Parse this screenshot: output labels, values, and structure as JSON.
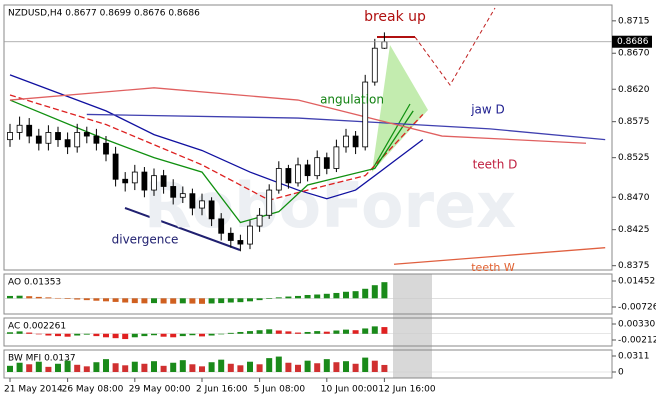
{
  "chart_data": [
    {
      "type": "candlestick",
      "title": "NZDUSD,H4 0.8677 0.8699 0.8676 0.8686",
      "watermark": "RoboForex",
      "categories": [
        "21 May 2014",
        null,
        null,
        null,
        null,
        null,
        "26 May 08:00",
        null,
        null,
        null,
        null,
        null,
        null,
        "29 May 00:00",
        null,
        null,
        null,
        null,
        null,
        null,
        "2 Jun 16:00",
        null,
        null,
        null,
        null,
        null,
        "5 Jun 08:00",
        null,
        null,
        null,
        null,
        null,
        null,
        "10 Jun 00:00",
        null,
        null,
        null,
        null,
        null,
        "12 Jun 16:00"
      ],
      "open": [
        0.855,
        0.856,
        0.857,
        0.8555,
        0.8545,
        0.856,
        0.855,
        0.854,
        0.856,
        0.8555,
        0.8545,
        0.853,
        0.8495,
        0.849,
        0.8505,
        0.848,
        0.85,
        0.8485,
        0.847,
        0.8475,
        0.8455,
        0.8465,
        0.844,
        0.842,
        0.841,
        0.8405,
        0.843,
        0.8445,
        0.848,
        0.851,
        0.849,
        0.8515,
        0.85,
        0.8525,
        0.851,
        0.854,
        0.8555,
        0.854,
        0.863,
        0.8677
      ],
      "high": [
        0.8572,
        0.8582,
        0.858,
        0.8565,
        0.857,
        0.8568,
        0.856,
        0.8572,
        0.8568,
        0.8565,
        0.8555,
        0.854,
        0.8505,
        0.8515,
        0.8512,
        0.851,
        0.8508,
        0.8495,
        0.8485,
        0.8482,
        0.8475,
        0.847,
        0.8448,
        0.8428,
        0.8418,
        0.8438,
        0.8455,
        0.8488,
        0.852,
        0.8515,
        0.8525,
        0.8522,
        0.8535,
        0.8532,
        0.855,
        0.8565,
        0.8562,
        0.864,
        0.869,
        0.8699
      ],
      "low": [
        0.854,
        0.855,
        0.8545,
        0.8535,
        0.8535,
        0.854,
        0.853,
        0.8532,
        0.8545,
        0.8535,
        0.852,
        0.8485,
        0.8478,
        0.848,
        0.847,
        0.8472,
        0.8475,
        0.846,
        0.8462,
        0.8445,
        0.8445,
        0.843,
        0.841,
        0.84,
        0.8395,
        0.8398,
        0.8422,
        0.844,
        0.8475,
        0.8482,
        0.8485,
        0.8492,
        0.8495,
        0.8502,
        0.8505,
        0.8532,
        0.853,
        0.8535,
        0.8625,
        0.8676
      ],
      "close": [
        0.856,
        0.857,
        0.8555,
        0.8545,
        0.856,
        0.855,
        0.854,
        0.856,
        0.8555,
        0.8545,
        0.853,
        0.8495,
        0.849,
        0.8505,
        0.848,
        0.85,
        0.8485,
        0.847,
        0.8475,
        0.8455,
        0.8465,
        0.844,
        0.842,
        0.841,
        0.8405,
        0.843,
        0.8445,
        0.848,
        0.851,
        0.849,
        0.8515,
        0.85,
        0.8525,
        0.851,
        0.854,
        0.8555,
        0.854,
        0.863,
        0.8677,
        0.8686
      ],
      "lines": [
        {
          "color": "#1010a0",
          "style": "solid",
          "x": [
            0,
            5,
            10,
            15,
            20,
            25,
            30,
            33,
            36,
            40,
            43
          ],
          "values": [
            0.864,
            0.8615,
            0.859,
            0.8557,
            0.8535,
            0.8505,
            0.848,
            0.8468,
            0.848,
            0.852,
            0.855
          ]
        },
        {
          "color": "#dd2020",
          "style": "dashed",
          "x": [
            0,
            10,
            20,
            27,
            31,
            37,
            43
          ],
          "values": [
            0.8612,
            0.8571,
            0.8515,
            0.8466,
            0.848,
            0.85,
            0.8585
          ]
        },
        {
          "color": "#109010",
          "style": "solid",
          "x": [
            0,
            10,
            15,
            20,
            24,
            28,
            31,
            38,
            42
          ],
          "values": [
            0.8605,
            0.855,
            0.8525,
            0.8505,
            0.8435,
            0.845,
            0.8487,
            0.851,
            0.859
          ]
        },
        {
          "color": "#4040b0",
          "style": "solid",
          "x": [
            8,
            30,
            50,
            62
          ],
          "values": [
            0.8585,
            0.858,
            0.8565,
            0.855
          ]
        },
        {
          "color": "#e06060",
          "style": "solid",
          "x": [
            0,
            15,
            30,
            45,
            60
          ],
          "values": [
            0.8605,
            0.8622,
            0.8605,
            0.8555,
            0.8545
          ]
        },
        {
          "color": "#e06040",
          "style": "solid",
          "x": [
            40,
            62
          ],
          "values": [
            0.8377,
            0.84
          ]
        }
      ],
      "annotations": [
        {
          "text": "break up",
          "color": "#b01010"
        },
        {
          "text": "angulation",
          "color": "#108010"
        },
        {
          "text": "jaw D",
          "color": "#202090"
        },
        {
          "text": "teeth D",
          "color": "#c02040"
        },
        {
          "text": "teeth W",
          "color": "#e06030"
        },
        {
          "text": "divergence",
          "color": "#202070"
        }
      ],
      "current_price": 0.8686,
      "ylim": [
        0.8369,
        0.8737
      ],
      "yticks": [
        0.8715,
        {
          "value": 0.867,
          "label": "0.8670"
        },
        {
          "value": 0.862,
          "label": "0.8620"
        },
        0.8575,
        0.8525,
        {
          "value": 0.847,
          "label": "0.8470"
        },
        0.8425,
        0.8375
      ]
    },
    {
      "type": "bar",
      "title": "AO 0.01353",
      "colors": [
        "#1a8a1a",
        "#d06020"
      ],
      "values": [
        0.002,
        0.0022,
        0.0018,
        0.0012,
        0.0008,
        0.0003,
        -0.0005,
        -0.001,
        -0.0015,
        -0.002,
        -0.0025,
        -0.003,
        -0.0035,
        -0.004,
        -0.0042,
        -0.004,
        -0.0043,
        -0.0045,
        -0.0042,
        -0.0044,
        -0.0046,
        -0.0043,
        -0.004,
        -0.0035,
        -0.0032,
        -0.0025,
        -0.0015,
        -0.0005,
        0.0008,
        0.0015,
        0.002,
        0.0028,
        0.0032,
        0.0038,
        0.0045,
        0.0055,
        0.006,
        0.008,
        0.011,
        0.01353
      ],
      "ylim": [
        -0.01312,
        0.02038
      ],
      "yticks": [
        0.01452,
        -0.00726
      ]
    },
    {
      "type": "bar",
      "title": "AC 0.002261",
      "colors": [
        "#1a8a1a",
        "#e02020"
      ],
      "values": [
        0.0005,
        0.0008,
        0.0004,
        -0.0002,
        -0.0006,
        -0.0008,
        -0.001,
        -0.0006,
        -0.0003,
        -0.0008,
        -0.0012,
        -0.0015,
        -0.0018,
        -0.0012,
        -0.0008,
        -0.0005,
        -0.001,
        -0.0012,
        -0.0008,
        -0.0005,
        -0.0009,
        -0.0006,
        -0.0002,
        0.0003,
        0.0006,
        0.0009,
        0.0012,
        0.0015,
        0.0011,
        0.0008,
        0.0004,
        0.0006,
        0.0009,
        0.0007,
        0.0011,
        0.0014,
        0.0012,
        0.0018,
        0.0025,
        0.002261
      ],
      "ylim": [
        -0.004155,
        0.005342
      ],
      "yticks": [
        0.003307,
        -0.00212
      ]
    },
    {
      "type": "bar",
      "title": "BW MFI 0.0137",
      "colors": [
        "#1a8a1a",
        "#d03030"
      ],
      "values": [
        0.012,
        0.018,
        0.015,
        0.02,
        0.01,
        0.016,
        0.022,
        0.014,
        0.011,
        0.019,
        0.025,
        0.017,
        0.013,
        0.02,
        0.016,
        0.021,
        0.012,
        0.018,
        0.023,
        0.015,
        0.011,
        0.019,
        0.024,
        0.016,
        0.013,
        0.02,
        0.015,
        0.027,
        0.03,
        0.018,
        0.014,
        0.022,
        0.017,
        0.025,
        0.019,
        0.021,
        0.016,
        0.028,
        0.022,
        0.0137
      ],
      "ylim": [
        -0.0117,
        0.0428
      ],
      "yticks": [
        0.0311,
        0
      ]
    }
  ]
}
